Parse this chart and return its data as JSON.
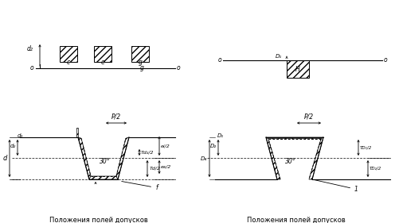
{
  "title_left": "Положения полей допусков\nнаружной резьбы",
  "title_right": "Положения полей допусков\nвнутренней резьбы",
  "bg_color": "#ffffff",
  "line_color": "#000000",
  "angle_text": "30°",
  "p2_text": "P/2"
}
